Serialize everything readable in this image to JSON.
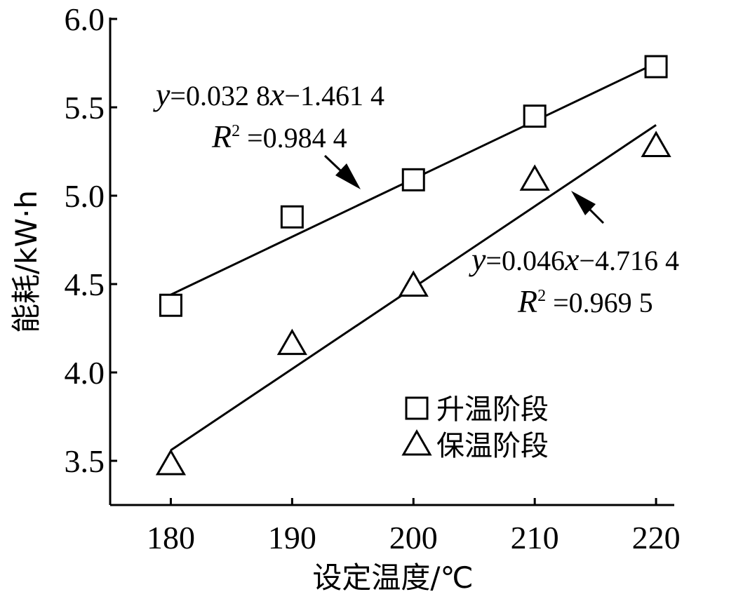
{
  "chart_data": {
    "type": "scatter",
    "xlabel": "设定温度/℃",
    "ylabel": "能耗/kW·h",
    "xlim": [
      175,
      221.5
    ],
    "ylim": [
      3.25,
      6.0
    ],
    "xticks": [
      180,
      190,
      200,
      210,
      220
    ],
    "yticks": [
      3.5,
      {
        "value": 4,
        "label": "4.0"
      },
      4.5,
      {
        "value": 5,
        "label": "5.0"
      },
      5.5,
      {
        "value": 6,
        "label": "6.0"
      }
    ],
    "x": [
      180,
      190,
      200,
      210,
      220
    ],
    "series": [
      {
        "name": "升温阶段",
        "marker": "square",
        "color": "#000000",
        "values": [
          4.38,
          4.88,
          5.09,
          5.45,
          5.73
        ],
        "trend": {
          "x": [
            180,
            220
          ],
          "values": [
            4.44,
            5.75
          ]
        }
      },
      {
        "name": "保温阶段",
        "marker": "triangle",
        "color": "#000000",
        "values": [
          3.48,
          4.16,
          4.49,
          5.09,
          5.28
        ],
        "trend": {
          "x": [
            180,
            220
          ],
          "values": [
            3.56,
            5.4
          ]
        }
      }
    ],
    "annotations": [
      {
        "parts": [
          "y",
          "=0.032 8",
          "x",
          "−1.461 4"
        ]
      },
      {
        "parts": [
          "R",
          "2",
          " =0.984 4"
        ]
      },
      {
        "parts": [
          "y",
          "=0.046",
          "x",
          "−4.716 4"
        ]
      },
      {
        "parts": [
          "R",
          "2",
          " =0.969 5"
        ]
      }
    ]
  }
}
